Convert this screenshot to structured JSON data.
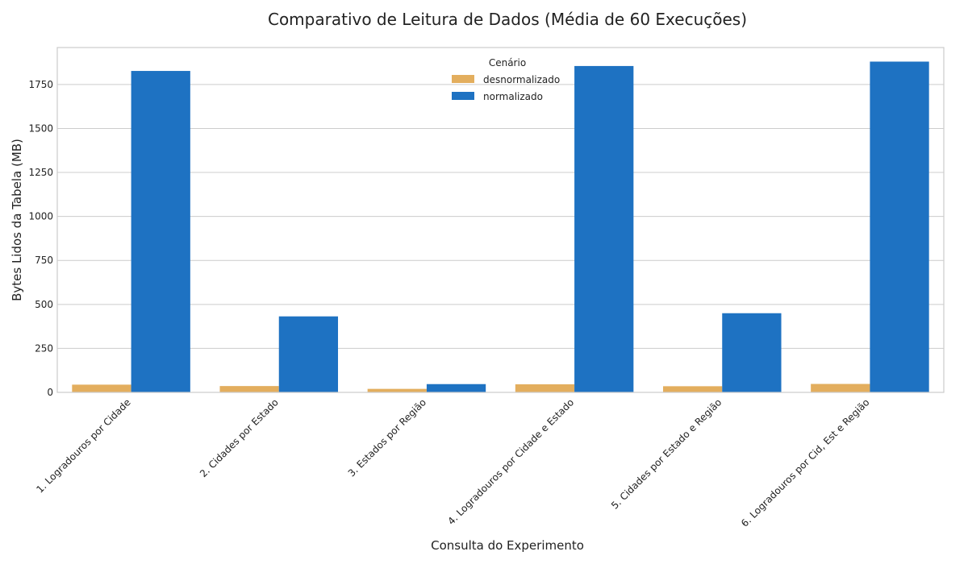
{
  "chart_data": {
    "type": "bar",
    "title": "Comparativo de Leitura de Dados (Média de 60 Execuções)",
    "xlabel": "Consulta do Experimento",
    "ylabel": "Bytes Lidos da Tabela (MB)",
    "ylim": [
      0,
      1960
    ],
    "yticks": [
      0,
      250,
      500,
      750,
      1000,
      1250,
      1500,
      1750
    ],
    "grid": "horizontal",
    "legend": {
      "title": "Cenário",
      "placement": "top-center"
    },
    "categories": [
      "1. Logradouros por Cidade",
      "2. Cidades por Estado",
      "3. Estados por Região",
      "4. Logradouros por Cidade e Estado",
      "5. Cidades por Estado e Região",
      "6. Logradouros por Cid, Est e Região"
    ],
    "series": [
      {
        "name": "desnormalizado",
        "color": "#E3AE5E",
        "values": [
          44,
          36,
          20,
          46,
          35,
          48
        ]
      },
      {
        "name": "normalizado",
        "color": "#1E72C2",
        "values": [
          1827,
          432,
          47,
          1855,
          450,
          1880
        ]
      }
    ]
  }
}
